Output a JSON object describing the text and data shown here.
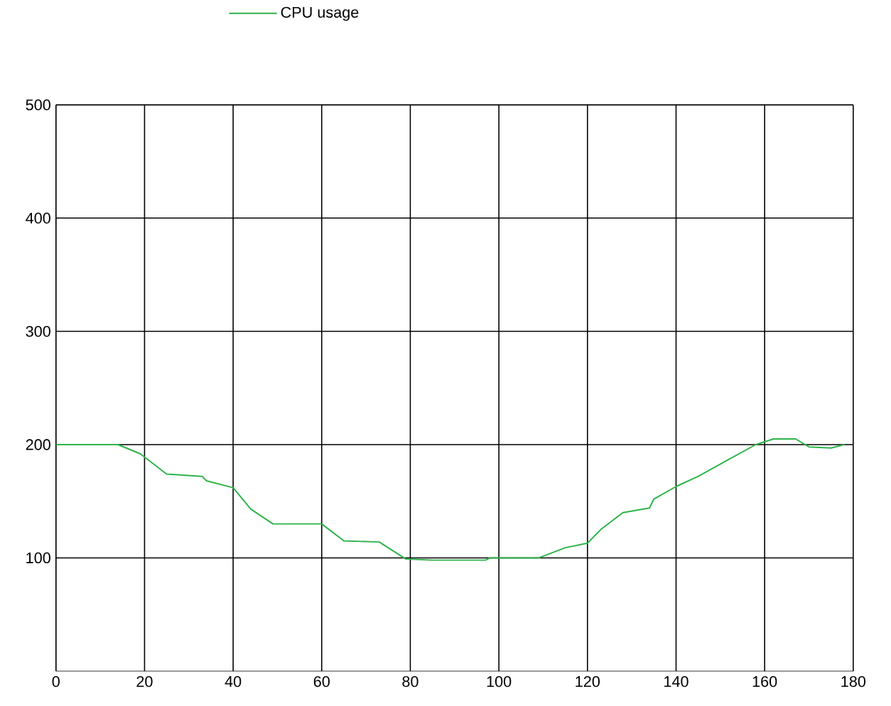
{
  "chart_data": {
    "type": "line",
    "xlim": [
      0,
      180
    ],
    "ylim": [
      0,
      500
    ],
    "xticks": [
      0,
      20,
      40,
      60,
      80,
      100,
      120,
      140,
      160,
      180
    ],
    "yticks": [
      100,
      200,
      300,
      400,
      500
    ],
    "grid": true,
    "legend": "top",
    "marker": "none",
    "line_style": "solid",
    "series": [
      {
        "name": "CPU usage",
        "color": "#2db34a",
        "x": [
          0,
          14,
          19,
          25,
          33,
          34,
          40,
          44,
          49,
          52,
          60,
          65,
          73,
          79,
          85,
          97,
          98,
          109,
          115,
          120,
          123,
          128,
          134,
          135,
          140,
          145,
          151,
          158,
          162,
          167,
          170,
          175,
          178
        ],
        "values": [
          200,
          200,
          192,
          174,
          172,
          168,
          162,
          143,
          130,
          130,
          130,
          115,
          114,
          99,
          98,
          98,
          100,
          100,
          109,
          113,
          125,
          140,
          144,
          152,
          163,
          172,
          185,
          200,
          205,
          205,
          198,
          197,
          200
        ]
      }
    ]
  }
}
